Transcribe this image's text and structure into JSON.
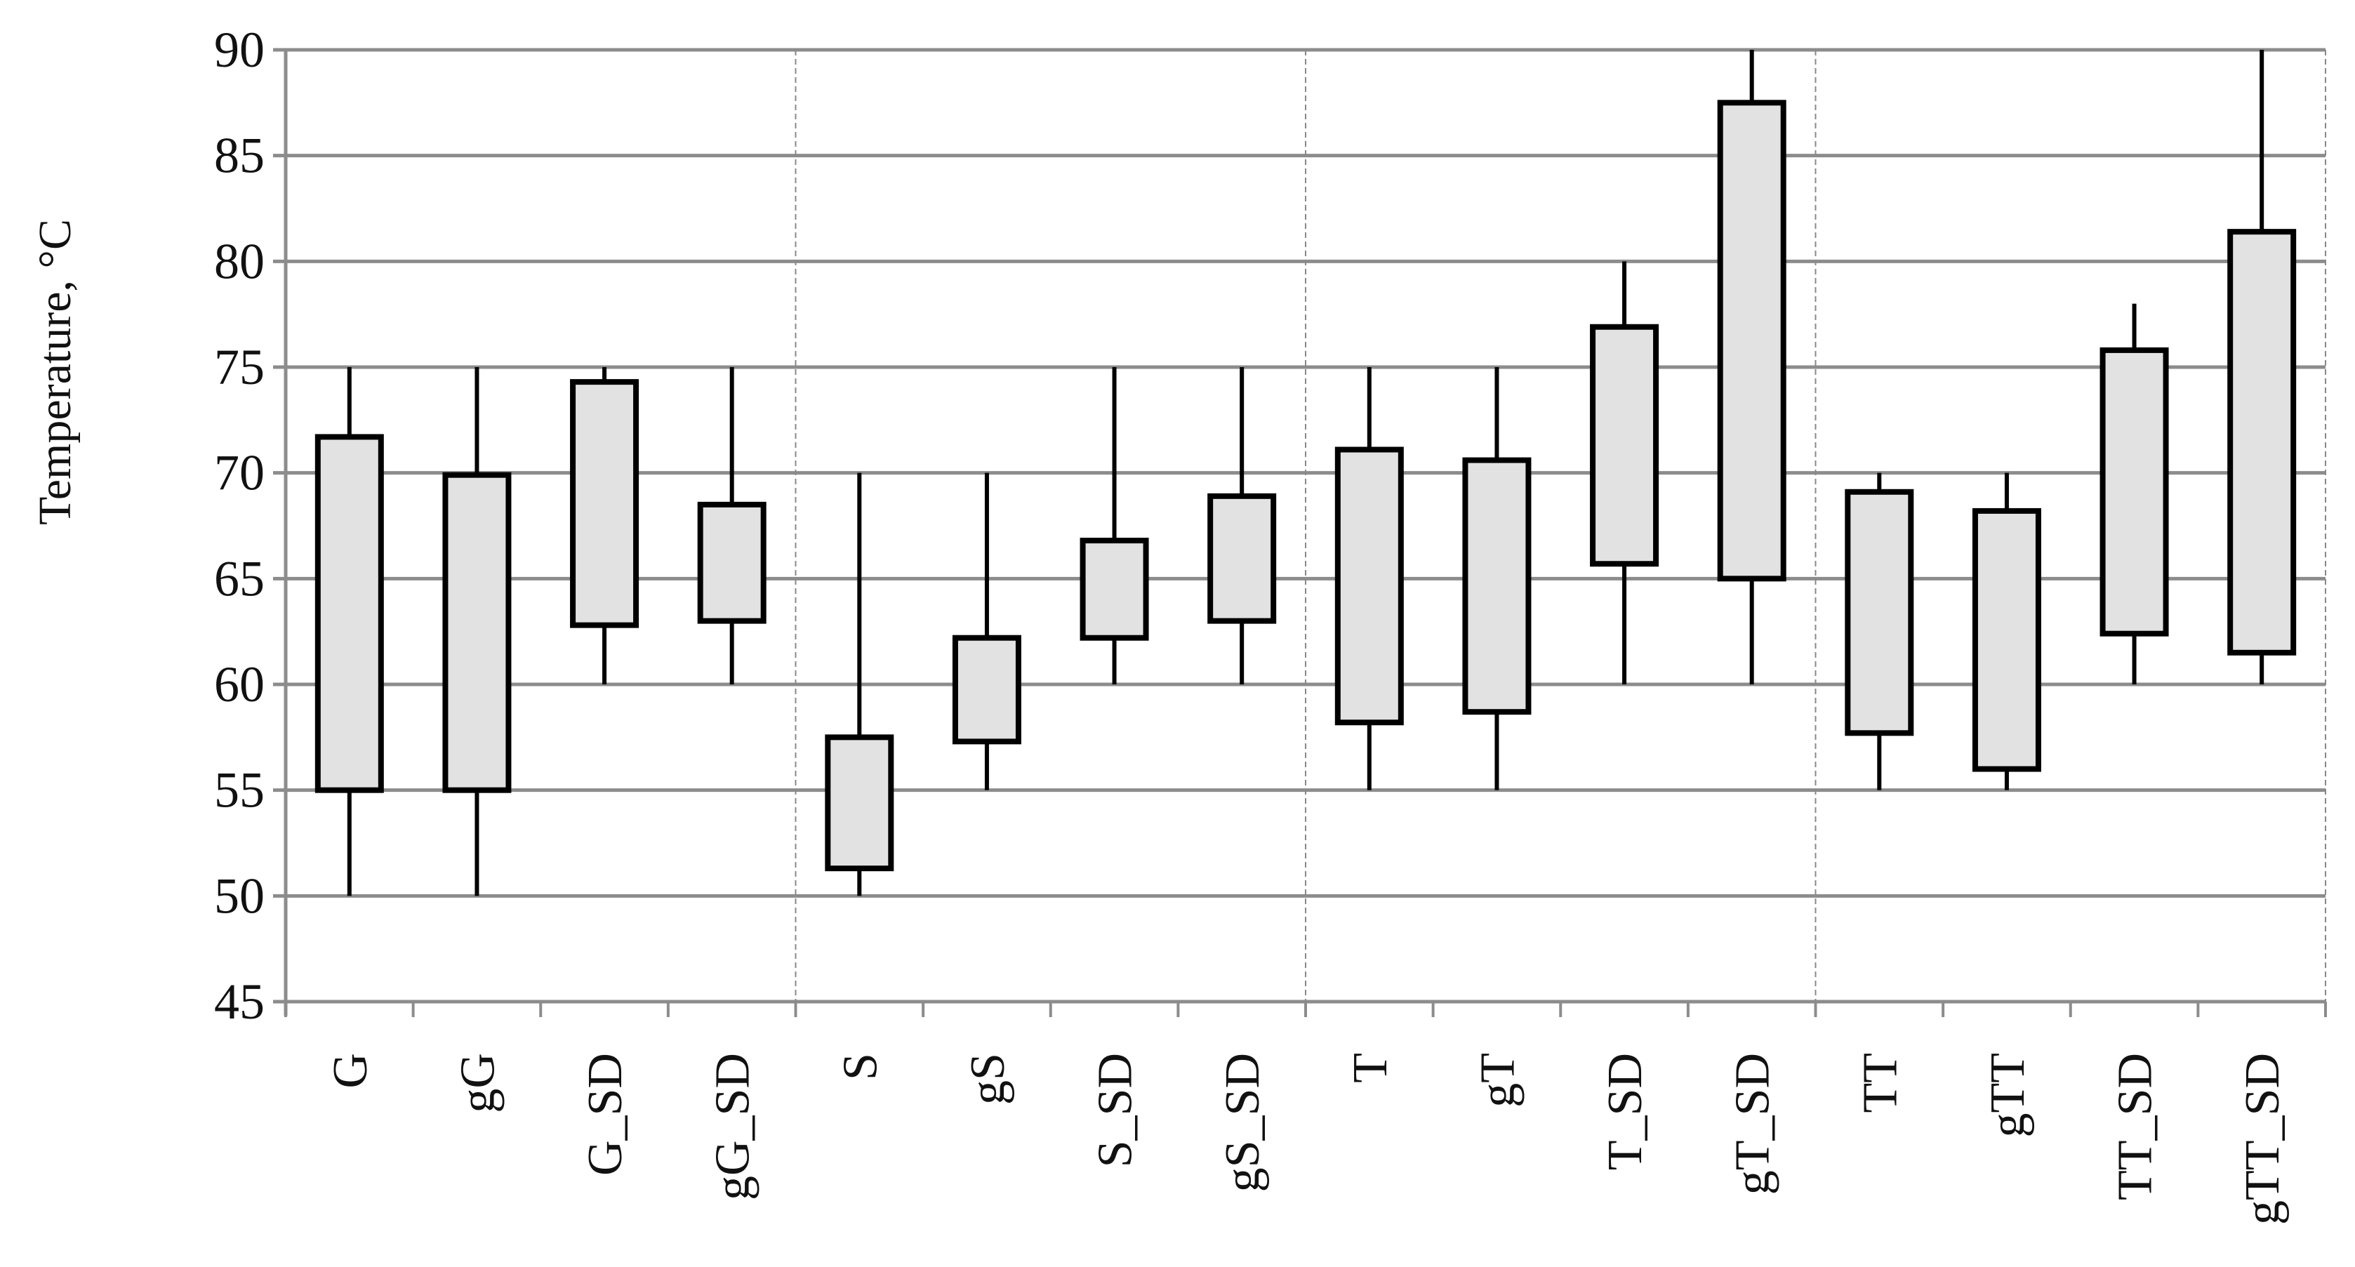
{
  "chart_data": {
    "type": "boxplot",
    "title": "",
    "xlabel": "",
    "ylabel": "Temperature, °C",
    "ylim": [
      45,
      90
    ],
    "yticks": [
      45,
      50,
      55,
      60,
      65,
      70,
      75,
      80,
      85,
      90
    ],
    "grid": "horizontal major gridlines; dashed vertical separators between groups of four",
    "box_fill": "#e2e2e2",
    "box_stroke": "#000000",
    "grid_color": "#8c8c8c",
    "categories": [
      "G",
      "gG",
      "G_SD",
      "gG_SD",
      "S",
      "gS",
      "S_SD",
      "gS_SD",
      "T",
      "gT",
      "T_SD",
      "gT_SD",
      "TT",
      "gTT",
      "TT_SD",
      "gTT_SD"
    ],
    "series": [
      {
        "category": "G",
        "min": 50,
        "q1": 55,
        "q3": 71.7,
        "max": 75
      },
      {
        "category": "gG",
        "min": 50,
        "q1": 55,
        "q3": 69.9,
        "max": 75
      },
      {
        "category": "G_SD",
        "min": 60,
        "q1": 62.8,
        "q3": 74.3,
        "max": 75
      },
      {
        "category": "gG_SD",
        "min": 60,
        "q1": 63,
        "q3": 68.5,
        "max": 75
      },
      {
        "category": "S",
        "min": 50,
        "q1": 51.3,
        "q3": 57.5,
        "max": 70
      },
      {
        "category": "gS",
        "min": 55,
        "q1": 57.3,
        "q3": 62.2,
        "max": 70
      },
      {
        "category": "S_SD",
        "min": 60,
        "q1": 62.2,
        "q3": 66.8,
        "max": 75
      },
      {
        "category": "gS_SD",
        "min": 60,
        "q1": 63,
        "q3": 68.9,
        "max": 75
      },
      {
        "category": "T",
        "min": 55,
        "q1": 58.2,
        "q3": 71.1,
        "max": 75
      },
      {
        "category": "gT",
        "min": 55,
        "q1": 58.7,
        "q3": 70.6,
        "max": 75
      },
      {
        "category": "T_SD",
        "min": 60,
        "q1": 65.7,
        "q3": 76.9,
        "max": 80
      },
      {
        "category": "gT_SD",
        "min": 60,
        "q1": 65,
        "q3": 87.5,
        "max": 90
      },
      {
        "category": "TT",
        "min": 55,
        "q1": 57.7,
        "q3": 69.1,
        "max": 70
      },
      {
        "category": "gTT",
        "min": 55,
        "q1": 56,
        "q3": 68.2,
        "max": 70
      },
      {
        "category": "TT_SD",
        "min": 60,
        "q1": 62.4,
        "q3": 75.8,
        "max": 78
      },
      {
        "category": "gTT_SD",
        "min": 60,
        "q1": 61.5,
        "q3": 81.4,
        "max": 90
      }
    ]
  }
}
